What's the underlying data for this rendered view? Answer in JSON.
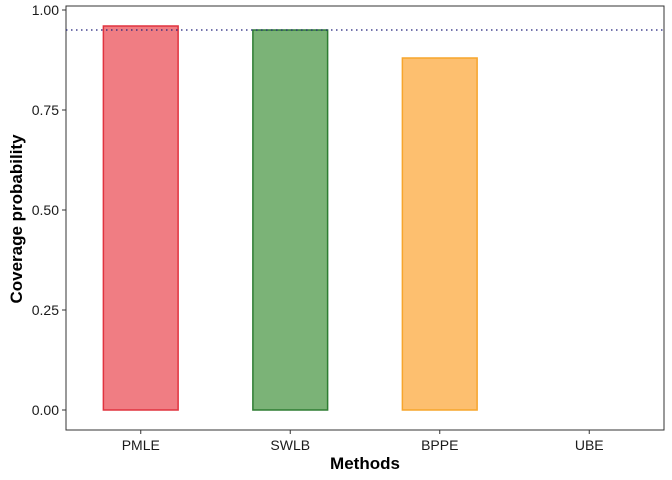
{
  "chart_data": {
    "type": "bar",
    "xlabel": "Methods",
    "ylabel": "Coverage probability",
    "categories": [
      "PMLE",
      "SWLB",
      "BPPE",
      "UBE"
    ],
    "values": [
      0.96,
      0.95,
      0.88,
      0.0
    ],
    "ylim": [
      -0.05,
      1.0
    ],
    "yticks": [
      0.0,
      0.25,
      0.5,
      0.75,
      1.0
    ],
    "ytick_labels": [
      "0.00",
      "0.25",
      "0.50",
      "0.75",
      "1.00"
    ],
    "reference_line": {
      "y": 0.95,
      "style": "dotted",
      "color": "#1f1f7a"
    },
    "colors": {
      "fill": [
        "#f07d83",
        "#7bb377",
        "#fdbf6f",
        "#ffffff"
      ],
      "stroke": [
        "#e0333f",
        "#2e7d32",
        "#f7a52c",
        "#4d4d4d"
      ]
    },
    "grid": false,
    "legend": "none"
  }
}
